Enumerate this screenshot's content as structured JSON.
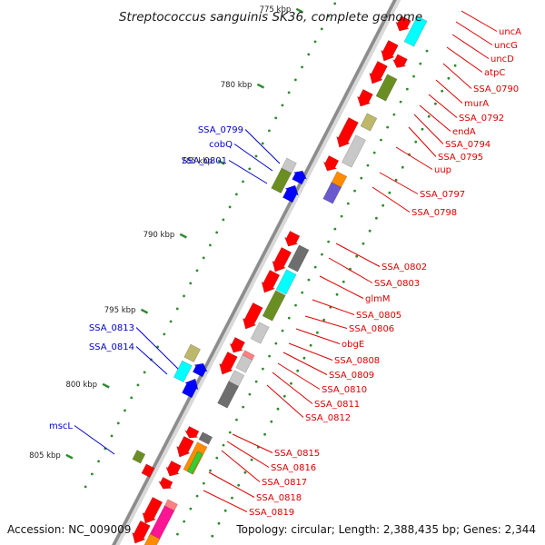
{
  "title": "Streptococcus sanguinis SK36, complete genome",
  "footer": {
    "accession": "Accession: NC_009009",
    "topology": "Topology: circular; Length: 2,388,435 bp; Genes: 2,344"
  },
  "colors": {
    "backbone": "#8c8c8c",
    "tick": "#2e8b2e",
    "cds": "#ff0000",
    "left_label": "#0000cc",
    "right_label": "#dd0000",
    "gray": "#c8c8c8",
    "dark_gray": "#6e6e6e",
    "cyan": "#00ffff",
    "olive": "#6b8e23",
    "khaki": "#bdb76b",
    "orange": "#ff8c00",
    "pink": "#ff8080",
    "magenta": "#ff1493",
    "blue": "#0000ff"
  },
  "kbp_ticks": [
    "775 kbp",
    "780 kbp",
    "785 kbp",
    "790 kbp",
    "795 kbp",
    "800 kbp",
    "805 kbp"
  ],
  "left_labels": [
    "SSA_0799",
    "cobQ",
    "SSA_0801",
    "SSA_0813",
    "SSA_0814",
    "mscL"
  ],
  "right_labels": [
    "uncA",
    "uncG",
    "uncD",
    "atpC",
    "SSA_0790",
    "murA",
    "SSA_0792",
    "endA",
    "SSA_0794",
    "SSA_0795",
    "uup",
    "SSA_0797",
    "SSA_0798",
    "SSA_0802",
    "SSA_0803",
    "glmM",
    "SSA_0805",
    "SSA_0806",
    "obgE",
    "SSA_0808",
    "SSA_0809",
    "SSA_0810",
    "SSA_0811",
    "SSA_0812",
    "SSA_0815",
    "SSA_0816",
    "SSA_0817",
    "SSA_0818",
    "SSA_0819"
  ]
}
